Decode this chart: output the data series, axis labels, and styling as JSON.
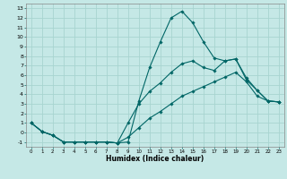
{
  "xlabel": "Humidex (Indice chaleur)",
  "ylabel": "",
  "bg_color": "#c5e8e6",
  "grid_color": "#a8d4d0",
  "line_color": "#006666",
  "xlim": [
    -0.5,
    23.5
  ],
  "ylim": [
    -1.5,
    13.5
  ],
  "xticks": [
    0,
    1,
    2,
    3,
    4,
    5,
    6,
    7,
    8,
    9,
    10,
    11,
    12,
    13,
    14,
    15,
    16,
    17,
    18,
    19,
    20,
    21,
    22,
    23
  ],
  "yticks": [
    -1,
    0,
    1,
    2,
    3,
    4,
    5,
    6,
    7,
    8,
    9,
    10,
    11,
    12,
    13
  ],
  "line1_x": [
    0,
    1,
    2,
    3,
    4,
    5,
    6,
    7,
    8,
    9,
    10,
    11,
    12,
    13,
    14,
    15,
    16,
    17,
    18,
    19,
    20,
    21,
    22,
    23
  ],
  "line1_y": [
    1.0,
    0.1,
    -0.3,
    -1.0,
    -1.0,
    -1.0,
    -1.0,
    -1.0,
    -1.1,
    -1.0,
    3.3,
    6.8,
    9.5,
    12.0,
    12.7,
    11.5,
    9.5,
    7.8,
    7.5,
    7.7,
    5.7,
    4.4,
    3.3,
    3.2
  ],
  "line2_x": [
    0,
    1,
    2,
    3,
    4,
    5,
    6,
    7,
    8,
    9,
    10,
    11,
    12,
    13,
    14,
    15,
    16,
    17,
    18,
    19,
    20,
    21,
    22,
    23
  ],
  "line2_y": [
    1.0,
    0.1,
    -0.3,
    -1.0,
    -1.0,
    -1.0,
    -1.0,
    -1.0,
    -1.1,
    1.0,
    3.0,
    4.3,
    5.2,
    6.3,
    7.2,
    7.5,
    6.8,
    6.5,
    7.5,
    7.7,
    5.5,
    4.4,
    3.3,
    3.2
  ],
  "line3_x": [
    0,
    1,
    2,
    3,
    4,
    5,
    6,
    7,
    8,
    9,
    10,
    11,
    12,
    13,
    14,
    15,
    16,
    17,
    18,
    19,
    20,
    21,
    22,
    23
  ],
  "line3_y": [
    1.0,
    0.1,
    -0.3,
    -1.0,
    -1.0,
    -1.0,
    -1.0,
    -1.0,
    -1.1,
    -0.5,
    0.5,
    1.5,
    2.2,
    3.0,
    3.8,
    4.3,
    4.8,
    5.3,
    5.8,
    6.3,
    5.3,
    3.8,
    3.3,
    3.2
  ]
}
